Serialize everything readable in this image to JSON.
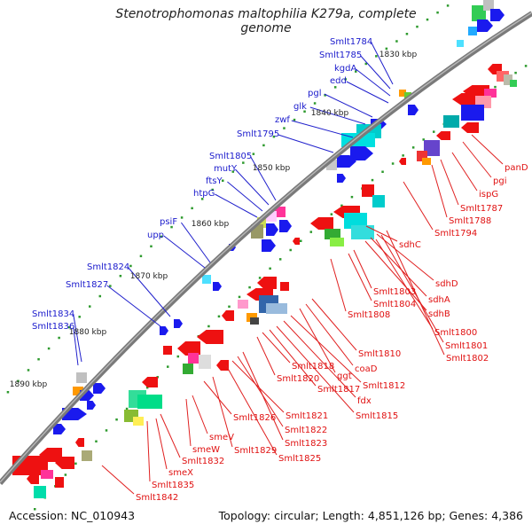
{
  "title": "Stenotrophomonas maltophilia K279a, complete genome",
  "footer": {
    "accession": "Accession: NC_010943",
    "topology": "Topology: circular; Length: 4,851,126 bp; Genes: 4,386"
  },
  "kbp_labels": [
    "1830 kbp",
    "1840 kbp",
    "1850 kbp",
    "1860 kbp",
    "1870 kbp",
    "1880 kbp",
    "1890 kbp"
  ],
  "forward_genes": [
    "Smlt1784",
    "Smlt1785",
    "kgdA",
    "edd",
    "pgl",
    "glk",
    "zwf",
    "Smlt1795",
    "Smlt1805",
    "mutY",
    "ftsY",
    "htpG",
    "psiF",
    "upp",
    "Smlt1824",
    "Smlt1827",
    "Smlt1834",
    "Smlt1836"
  ],
  "reverse_genes": [
    "panD",
    "pgi",
    "ispG",
    "Smlt1787",
    "Smlt1788",
    "Smlt1794",
    "sdhC",
    "sdhD",
    "sdhA",
    "sdhB",
    "Smlt1803",
    "Smlt1804",
    "Smlt1808",
    "Smlt1800",
    "Smlt1801",
    "Smlt1802",
    "Smlt1810",
    "coaD",
    "ggt",
    "Smlt1812",
    "fdx",
    "Smlt1815",
    "Smlt1818",
    "Smlt1820",
    "Smlt1817",
    "Smlt1821",
    "Smlt1822",
    "Smlt1823",
    "Smlt1825",
    "Smlt1826",
    "Smlt1829",
    "smeV",
    "smeW",
    "Smlt1832",
    "smeX",
    "Smlt1835",
    "Smlt1842"
  ],
  "colors": {
    "forward_label": "#1a1acc",
    "reverse_label": "#e01010",
    "backbone": "#7a7a7a",
    "tick": "#2e9a2e"
  }
}
